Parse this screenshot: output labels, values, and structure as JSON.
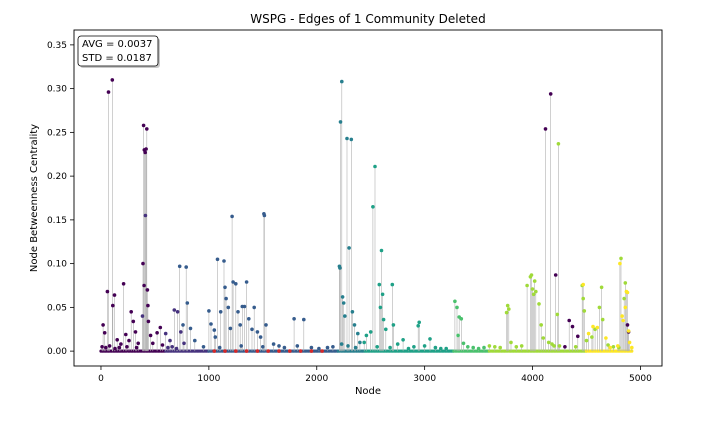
{
  "chart_data": {
    "type": "scatter",
    "title": "WSPG - Edges of 1 Community Deleted",
    "xlabel": "Node",
    "ylabel": "Node Betweenness Centrality",
    "xlim": [
      -250,
      5200
    ],
    "ylim": [
      -0.017,
      0.367
    ],
    "xticks": [
      0,
      1000,
      2000,
      3000,
      4000,
      5000
    ],
    "yticks": [
      0.0,
      0.05,
      0.1,
      0.15,
      0.2,
      0.25,
      0.3,
      0.35
    ],
    "xtick_labels": [
      "0",
      "1000",
      "2000",
      "3000",
      "4000",
      "5000"
    ],
    "ytick_labels": [
      "0.00",
      "0.05",
      "0.10",
      "0.15",
      "0.20",
      "0.25",
      "0.30",
      "0.35"
    ],
    "grid": false,
    "stem_color": "#b0b0b0",
    "stats_box": {
      "avg_text": "AVG = 0.0037",
      "std_text": "STD = 0.0187",
      "placement": "top-left"
    },
    "community_colors": [
      "#440154",
      "#46327e",
      "#365c8d",
      "#277f8e",
      "#1fa187",
      "#4ac16d",
      "#a0da39",
      "#fde725",
      "#d62728"
    ],
    "series": [
      {
        "color": "#440154",
        "points": [
          [
            70,
            0.296
          ],
          [
            105,
            0.31
          ],
          [
            60,
            0.068
          ],
          [
            20,
            0.03
          ],
          [
            35,
            0.021
          ],
          [
            110,
            0.052
          ],
          [
            125,
            0.064
          ],
          [
            150,
            0.013
          ],
          [
            185,
            0.008
          ],
          [
            210,
            0.077
          ],
          [
            230,
            0.019
          ],
          [
            260,
            0.012
          ],
          [
            280,
            0.045
          ],
          [
            300,
            0.034
          ],
          [
            320,
            0.022
          ],
          [
            345,
            0.009
          ],
          [
            395,
            0.258
          ],
          [
            402,
            0.23
          ],
          [
            410,
            0.227
          ],
          [
            418,
            0.231
          ],
          [
            425,
            0.254
          ],
          [
            390,
            0.1
          ],
          [
            400,
            0.075
          ],
          [
            430,
            0.07
          ],
          [
            435,
            0.052
          ],
          [
            440,
            0.034
          ],
          [
            460,
            0.018
          ],
          [
            480,
            0.009
          ],
          [
            520,
            0.021
          ],
          [
            550,
            0.027
          ],
          [
            570,
            0.007
          ],
          [
            10,
            0.005
          ],
          [
            45,
            0.004
          ],
          [
            80,
            0.006
          ],
          [
            130,
            0.003
          ],
          [
            170,
            0.004
          ],
          [
            240,
            0.005
          ],
          [
            330,
            0.004
          ],
          [
            4120,
            0.254
          ],
          [
            4168,
            0.294
          ],
          [
            4215,
            0.087
          ],
          [
            4340,
            0.035
          ],
          [
            4370,
            0.028
          ],
          [
            4420,
            0.017
          ],
          [
            4880,
            0.03
          ],
          [
            4890,
            0.022
          ],
          [
            4300,
            0.005
          ]
        ]
      },
      {
        "color": "#46327e",
        "points": [
          [
            412,
            0.155
          ],
          [
            385,
            0.04
          ],
          [
            600,
            0.02
          ],
          [
            640,
            0.012
          ],
          [
            680,
            0.047
          ],
          [
            710,
            0.045
          ],
          [
            740,
            0.022
          ],
          [
            770,
            0.009
          ],
          [
            620,
            0.004
          ],
          [
            660,
            0.005
          ],
          [
            700,
            0.003
          ]
        ]
      },
      {
        "color": "#365c8d",
        "points": [
          [
            730,
            0.097
          ],
          [
            790,
            0.096
          ],
          [
            800,
            0.055
          ],
          [
            760,
            0.03
          ],
          [
            830,
            0.026
          ],
          [
            870,
            0.012
          ],
          [
            950,
            0.005
          ],
          [
            1000,
            0.046
          ],
          [
            1020,
            0.031
          ],
          [
            1050,
            0.024
          ],
          [
            1060,
            0.016
          ],
          [
            1080,
            0.105
          ],
          [
            1110,
            0.045
          ],
          [
            1140,
            0.103
          ],
          [
            1150,
            0.073
          ],
          [
            1160,
            0.06
          ],
          [
            1180,
            0.05
          ],
          [
            1200,
            0.026
          ],
          [
            1215,
            0.154
          ],
          [
            1225,
            0.079
          ],
          [
            1250,
            0.077
          ],
          [
            1270,
            0.045
          ],
          [
            1290,
            0.03
          ],
          [
            1310,
            0.051
          ],
          [
            1330,
            0.051
          ],
          [
            1350,
            0.079
          ],
          [
            1370,
            0.037
          ],
          [
            1400,
            0.025
          ],
          [
            1420,
            0.05
          ],
          [
            1450,
            0.022
          ],
          [
            1480,
            0.016
          ],
          [
            1510,
            0.157
          ],
          [
            1515,
            0.155
          ],
          [
            1530,
            0.03
          ],
          [
            1600,
            0.008
          ],
          [
            1650,
            0.006
          ],
          [
            1700,
            0.004
          ],
          [
            1790,
            0.037
          ],
          [
            1820,
            0.006
          ],
          [
            1880,
            0.036
          ],
          [
            1950,
            0.004
          ],
          [
            2020,
            0.003
          ],
          [
            2100,
            0.004
          ],
          [
            2150,
            0.005
          ],
          [
            1100,
            0.004
          ],
          [
            1300,
            0.006
          ],
          [
            1500,
            0.005
          ]
        ]
      },
      {
        "color": "#277f8e",
        "points": [
          [
            2210,
            0.097
          ],
          [
            2215,
            0.095
          ],
          [
            2220,
            0.262
          ],
          [
            2232,
            0.308
          ],
          [
            2240,
            0.062
          ],
          [
            2250,
            0.055
          ],
          [
            2260,
            0.04
          ],
          [
            2280,
            0.243
          ],
          [
            2300,
            0.118
          ],
          [
            2320,
            0.242
          ],
          [
            2330,
            0.045
          ],
          [
            2350,
            0.03
          ],
          [
            2380,
            0.02
          ],
          [
            2400,
            0.01
          ],
          [
            2230,
            0.008
          ],
          [
            2290,
            0.006
          ],
          [
            2360,
            0.004
          ]
        ]
      },
      {
        "color": "#1fa187",
        "points": [
          [
            2520,
            0.165
          ],
          [
            2540,
            0.211
          ],
          [
            2580,
            0.076
          ],
          [
            2590,
            0.05
          ],
          [
            2600,
            0.115
          ],
          [
            2610,
            0.065
          ],
          [
            2620,
            0.036
          ],
          [
            2640,
            0.025
          ],
          [
            2700,
            0.076
          ],
          [
            2710,
            0.03
          ],
          [
            2500,
            0.022
          ],
          [
            2460,
            0.018
          ],
          [
            2440,
            0.01
          ],
          [
            2750,
            0.008
          ],
          [
            2800,
            0.013
          ],
          [
            2900,
            0.005
          ],
          [
            2940,
            0.029
          ],
          [
            2950,
            0.033
          ],
          [
            3000,
            0.006
          ],
          [
            3050,
            0.014
          ],
          [
            3100,
            0.004
          ],
          [
            3150,
            0.003
          ],
          [
            3200,
            0.003
          ],
          [
            2560,
            0.005
          ],
          [
            2680,
            0.004
          ],
          [
            2850,
            0.003
          ]
        ]
      },
      {
        "color": "#4ac16d",
        "points": [
          [
            3280,
            0.057
          ],
          [
            3300,
            0.05
          ],
          [
            3320,
            0.039
          ],
          [
            3340,
            0.037
          ],
          [
            3310,
            0.018
          ],
          [
            3360,
            0.009
          ],
          [
            3400,
            0.005
          ],
          [
            3450,
            0.004
          ],
          [
            3500,
            0.003
          ],
          [
            3550,
            0.004
          ]
        ]
      },
      {
        "color": "#a0da39",
        "points": [
          [
            3600,
            0.006
          ],
          [
            3650,
            0.005
          ],
          [
            3700,
            0.004
          ],
          [
            3760,
            0.044
          ],
          [
            3770,
            0.052
          ],
          [
            3780,
            0.048
          ],
          [
            3800,
            0.01
          ],
          [
            3850,
            0.005
          ],
          [
            3900,
            0.006
          ],
          [
            3950,
            0.075
          ],
          [
            3980,
            0.085
          ],
          [
            3990,
            0.087
          ],
          [
            4000,
            0.071
          ],
          [
            4010,
            0.065
          ],
          [
            4020,
            0.08
          ],
          [
            4030,
            0.068
          ],
          [
            4060,
            0.054
          ],
          [
            4080,
            0.03
          ],
          [
            4100,
            0.015
          ],
          [
            4150,
            0.01
          ],
          [
            4180,
            0.008
          ],
          [
            4200,
            0.006
          ],
          [
            4230,
            0.042
          ],
          [
            4240,
            0.237
          ],
          [
            4250,
            0.006
          ],
          [
            4400,
            0.005
          ],
          [
            4460,
            0.075
          ],
          [
            4470,
            0.06
          ],
          [
            4480,
            0.046
          ],
          [
            4500,
            0.012
          ],
          [
            4550,
            0.016
          ],
          [
            4580,
            0.025
          ],
          [
            4620,
            0.05
          ],
          [
            4640,
            0.073
          ],
          [
            4650,
            0.036
          ],
          [
            4700,
            0.007
          ],
          [
            4750,
            0.005
          ],
          [
            4800,
            0.004
          ],
          [
            4820,
            0.106
          ],
          [
            4850,
            0.06
          ],
          [
            4860,
            0.078
          ]
        ]
      },
      {
        "color": "#fde725",
        "points": [
          [
            4470,
            0.076
          ],
          [
            4520,
            0.02
          ],
          [
            4560,
            0.028
          ],
          [
            4600,
            0.027
          ],
          [
            4680,
            0.015
          ],
          [
            4720,
            0.004
          ],
          [
            4790,
            0.006
          ],
          [
            4810,
            0.1
          ],
          [
            4830,
            0.04
          ],
          [
            4840,
            0.035
          ],
          [
            4860,
            0.05
          ],
          [
            4870,
            0.068
          ],
          [
            4880,
            0.067
          ],
          [
            4890,
            0.023
          ],
          [
            4900,
            0.01
          ],
          [
            4920,
            0.004
          ]
        ]
      },
      {
        "color": "#d62728",
        "points": [
          [
            1050,
            0.0
          ],
          [
            1150,
            0.0
          ],
          [
            1250,
            0.0
          ],
          [
            1350,
            0.0
          ],
          [
            1450,
            0.0
          ],
          [
            1550,
            0.0
          ],
          [
            1650,
            0.0
          ],
          [
            1750,
            0.0
          ],
          [
            1850,
            0.0
          ],
          [
            1950,
            0.0
          ],
          [
            2050,
            0.0
          ]
        ]
      }
    ]
  }
}
